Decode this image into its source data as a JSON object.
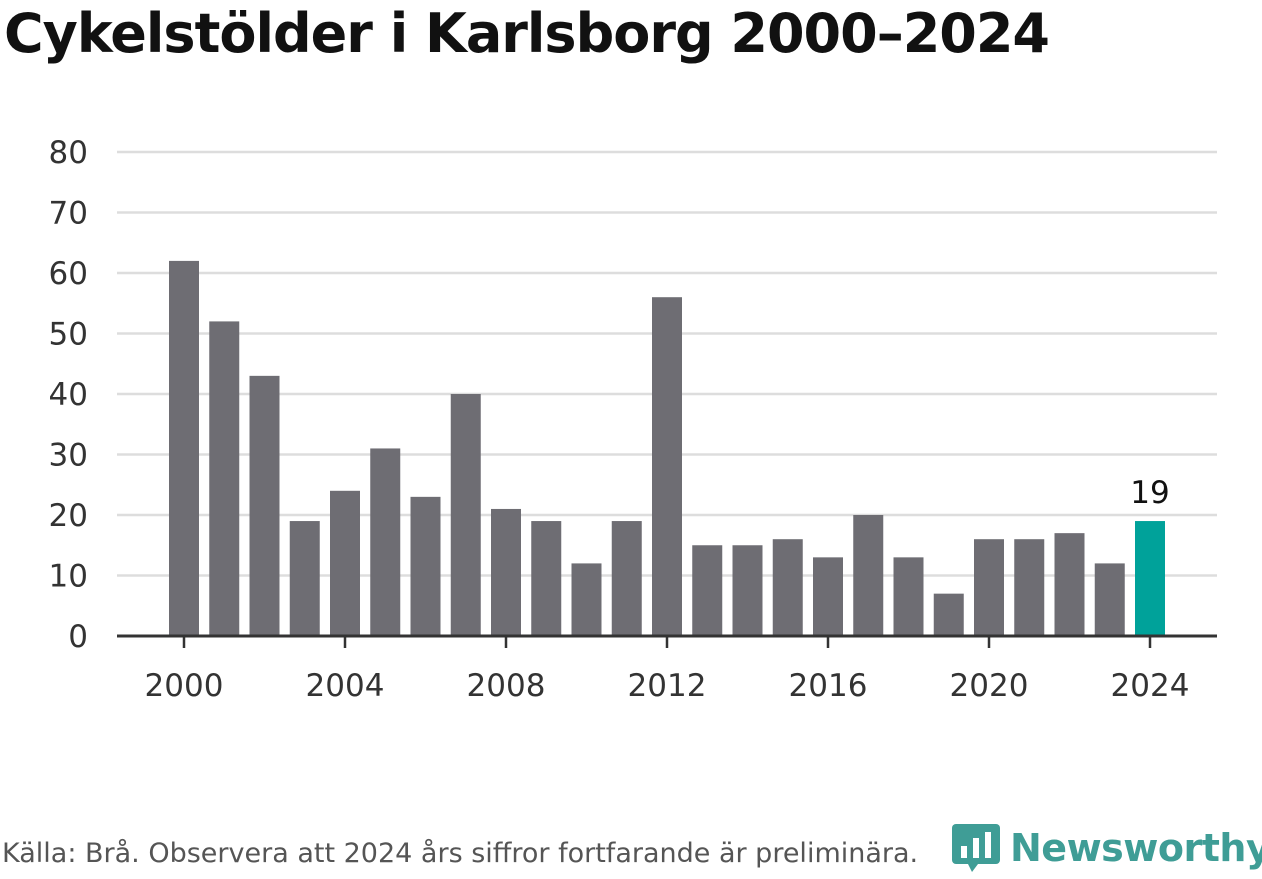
{
  "chart_data": {
    "type": "bar",
    "title": "Cykelstölder i Karlsborg 2000–2024",
    "xlabel": "",
    "ylabel": "",
    "ylim": [
      0,
      80
    ],
    "yticks": [
      0,
      10,
      20,
      30,
      40,
      50,
      60,
      70,
      80
    ],
    "xticks": [
      "2000",
      "2004",
      "2008",
      "2012",
      "2016",
      "2020",
      "2024"
    ],
    "grid": true,
    "categories": [
      "2000",
      "2001",
      "2002",
      "2003",
      "2004",
      "2005",
      "2006",
      "2007",
      "2008",
      "2009",
      "2010",
      "2011",
      "2012",
      "2013",
      "2014",
      "2015",
      "2016",
      "2017",
      "2018",
      "2019",
      "2020",
      "2021",
      "2022",
      "2023",
      "2024"
    ],
    "values": [
      62,
      52,
      43,
      19,
      24,
      31,
      23,
      40,
      21,
      19,
      12,
      19,
      56,
      15,
      15,
      16,
      13,
      20,
      13,
      7,
      16,
      16,
      17,
      12,
      19
    ],
    "highlight": {
      "category": "2024",
      "label": "19"
    },
    "colors": {
      "bar": "#6e6d73",
      "highlight": "#00a29a",
      "grid": "#dddddd",
      "axis": "#333333"
    }
  },
  "footer": {
    "source": "Källa: Brå. Observera att 2024 års siffror fortfarande är preliminära."
  },
  "brand": {
    "name": "Newsworthy",
    "icon": "newsworthy-logo-icon",
    "color": "#3f9d96"
  }
}
